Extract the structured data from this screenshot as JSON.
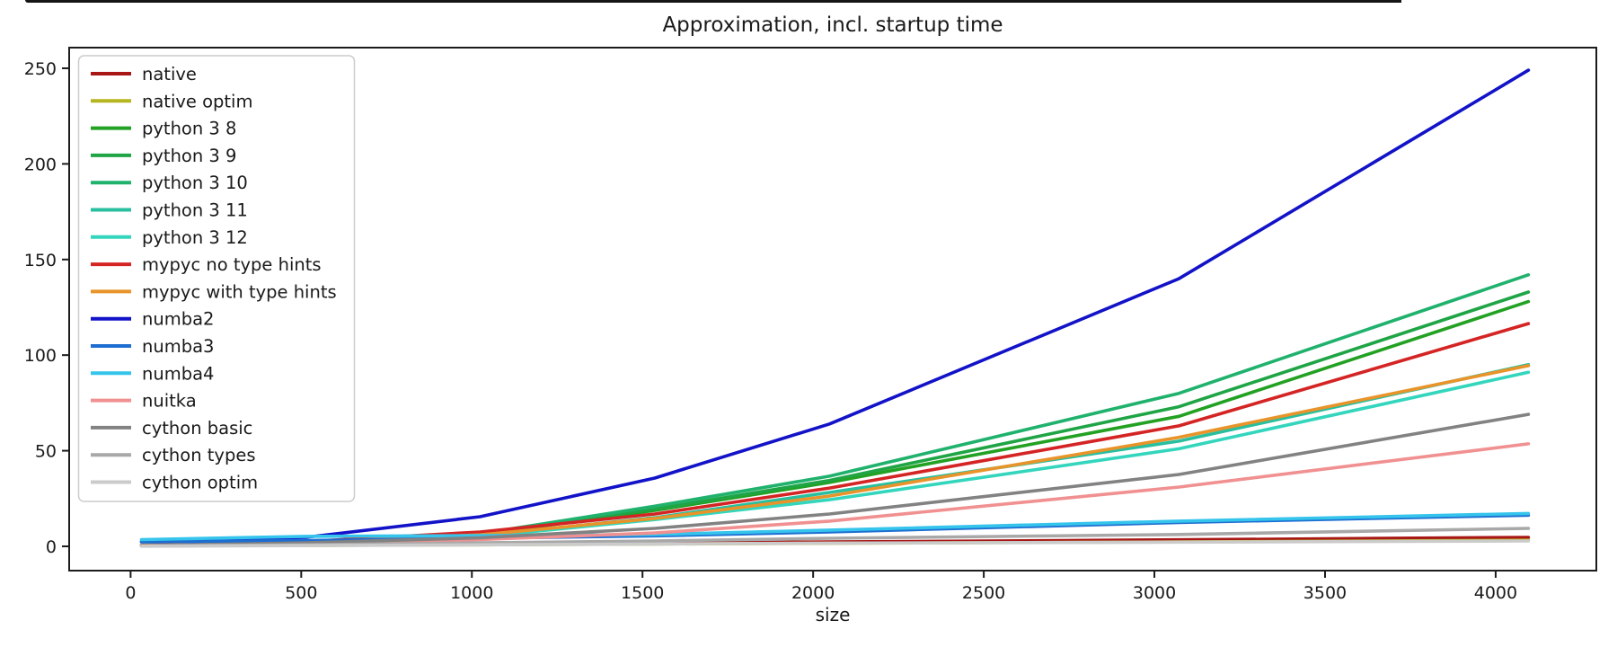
{
  "figure": {
    "title": "Approximation, incl. startup time",
    "xlabel": "size",
    "background": "#ffffff",
    "axis_color": "#1c1c1c",
    "tick_label_color": "#1a1a1a",
    "legend_border_color": "#cccccc",
    "legend_background": "rgba(255,255,255,0.85)"
  },
  "chart_data": {
    "type": "line",
    "title": "Approximation, incl. startup time",
    "xlabel": "size",
    "ylabel": "",
    "grid": false,
    "legend_position": "upper left",
    "x_ticks": [
      0,
      500,
      1000,
      1500,
      2000,
      2500,
      3000,
      3500,
      4000
    ],
    "y_ticks": [
      0,
      50,
      100,
      150,
      200,
      250
    ],
    "xlim": [
      -180,
      4295
    ],
    "ylim": [
      -12.7,
      260.8
    ],
    "x": [
      32,
      512,
      1024,
      1536,
      2048,
      3072,
      4096
    ],
    "series": [
      {
        "name": "native",
        "color": "#a81616",
        "values": [
          0.3,
          0.8,
          1.2,
          1.8,
          2.3,
          3.4,
          4.7
        ]
      },
      {
        "name": "native optim",
        "color": "#b5b520",
        "values": [
          0.2,
          0.5,
          0.8,
          1.2,
          1.6,
          2.3,
          3.2
        ]
      },
      {
        "name": "python 3 8",
        "color": "#23a123",
        "values": [
          0.5,
          2.0,
          6.0,
          18.8,
          33.4,
          68,
          128
        ]
      },
      {
        "name": "python 3 9",
        "color": "#1fa545",
        "values": [
          0.5,
          2.2,
          6.3,
          19.5,
          34.5,
          73,
          133
        ]
      },
      {
        "name": "python 3 10",
        "color": "#20b26d",
        "values": [
          0.6,
          2.4,
          6.6,
          21.0,
          36.7,
          80,
          142
        ]
      },
      {
        "name": "python 3 11",
        "color": "#27bf9f",
        "values": [
          0.5,
          1.8,
          5.5,
          15.0,
          28.2,
          55,
          95
        ]
      },
      {
        "name": "python 3 12",
        "color": "#33d6bd",
        "values": [
          0.4,
          1.6,
          5.0,
          14.0,
          24.4,
          51,
          91
        ]
      },
      {
        "name": "mypyc no type hints",
        "color": "#d42424",
        "values": [
          0.5,
          2.5,
          7.5,
          16.9,
          30.5,
          63,
          116.5
        ]
      },
      {
        "name": "mypyc with type hints",
        "color": "#e8942a",
        "values": [
          0.4,
          2.0,
          6.0,
          14.6,
          26.3,
          57,
          94.5
        ]
      },
      {
        "name": "numba2",
        "color": "#1212c8",
        "values": [
          2.5,
          4.7,
          15.5,
          35.7,
          64,
          140,
          249
        ]
      },
      {
        "name": "numba3",
        "color": "#1e6ed2",
        "values": [
          2.3,
          3.0,
          4.2,
          5.5,
          7.5,
          12.5,
          16.3
        ]
      },
      {
        "name": "numba4",
        "color": "#35c4ec",
        "values": [
          3.5,
          5.2,
          5.6,
          6.2,
          8.5,
          13.2,
          17.2
        ]
      },
      {
        "name": "nuitka",
        "color": "#f19090",
        "values": [
          0.3,
          1.5,
          3.5,
          7.0,
          13.2,
          31,
          53.6
        ]
      },
      {
        "name": "cython basic",
        "color": "#828282",
        "values": [
          0.3,
          1.8,
          4.5,
          9.4,
          16.9,
          37.6,
          69
        ]
      },
      {
        "name": "cython types",
        "color": "#a8a8a8",
        "values": [
          0.2,
          0.8,
          1.8,
          2.8,
          4.2,
          6.2,
          9.4
        ]
      },
      {
        "name": "cython optim",
        "color": "#cbcbcb",
        "values": [
          0.1,
          0.4,
          0.8,
          1.2,
          1.7,
          2.2,
          2.8
        ]
      }
    ]
  }
}
